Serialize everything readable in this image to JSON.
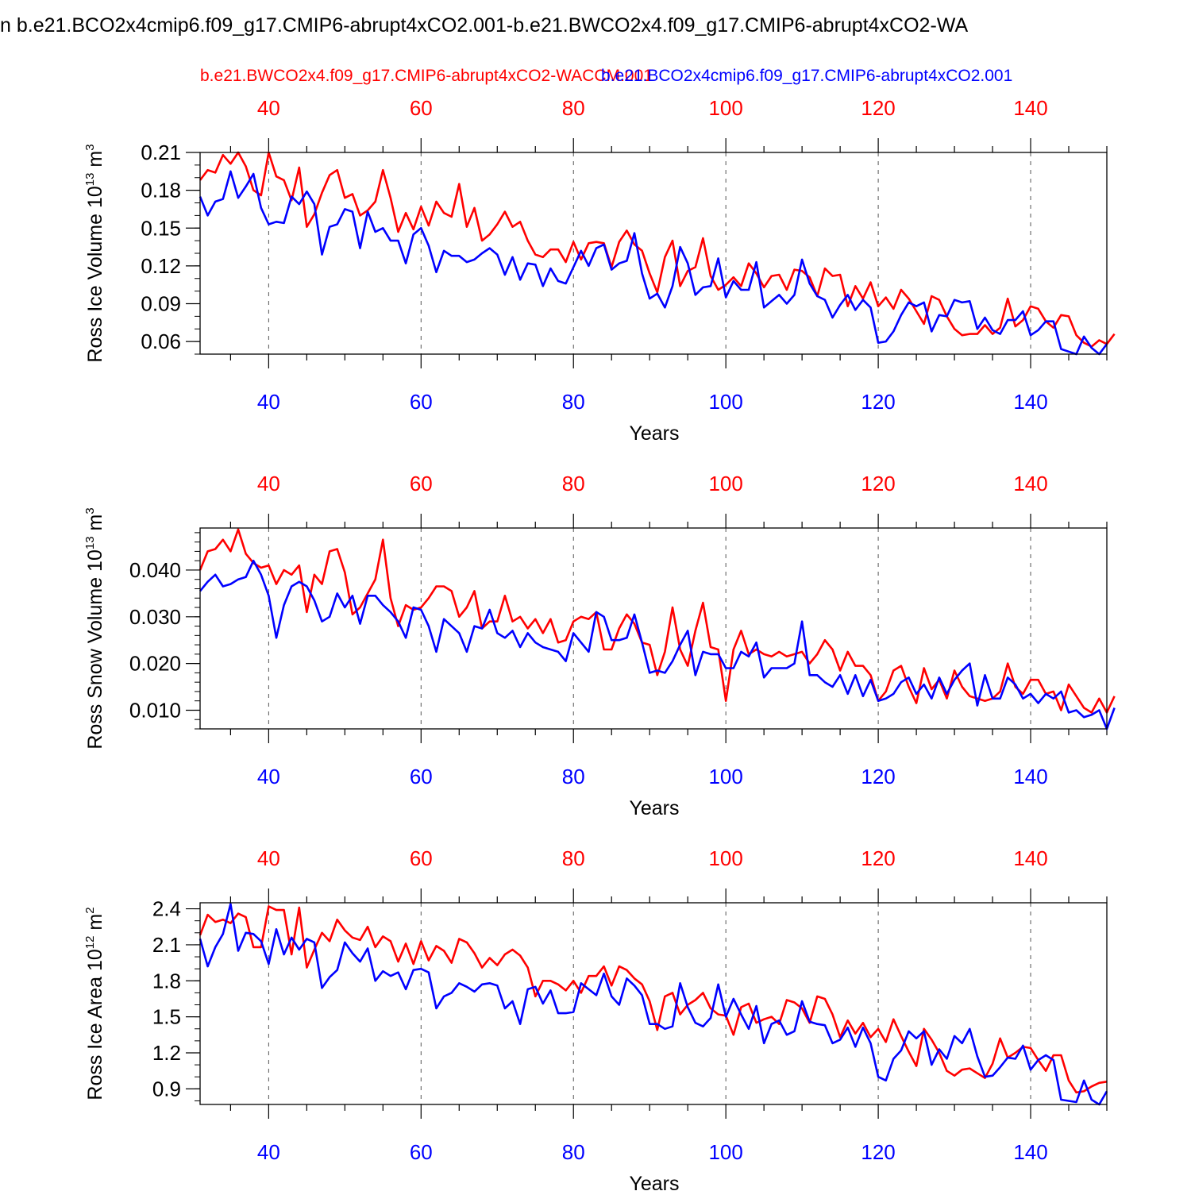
{
  "page": {
    "title": "n b.e21.BCO2x4cmip6.f09_g17.CMIP6-abrupt4xCO2.001-b.e21.BWCO2x4.f09_g17.CMIP6-abrupt4xCO2-WA"
  },
  "legend": {
    "red_label": "b.e21.BWCO2x4.f09_g17.CMIP6-abrupt4xCO2-WACCM.001",
    "blue_label": "b.e21.BCO2x4cmip6.f09_g17.CMIP6-abrupt4xCO2.001",
    "red_color": "#ff0000",
    "blue_color": "#0000ff"
  },
  "chart_data": [
    {
      "type": "line",
      "xlabel": "Years",
      "ylabel": "Ross Ice Volume 10",
      "ylabel_exp": "13",
      "ylabel_unit": " m",
      "ylabel_unit_exp": "3",
      "xlim": [
        31,
        150
      ],
      "ylim": [
        0.05,
        0.21
      ],
      "x_ticks": [
        40,
        60,
        80,
        100,
        120,
        140
      ],
      "y_ticks": [
        0.06,
        0.09,
        0.12,
        0.15,
        0.18,
        0.21
      ],
      "y_tick_labels": [
        "0.06",
        "0.09",
        "0.12",
        "0.15",
        "0.18",
        "0.21"
      ],
      "y_minor_step": 0.01,
      "x_start": 31,
      "series": [
        {
          "name": "b.e21.BWCO2x4.f09_g17.CMIP6-abrupt4xCO2-WACCM.001",
          "color": "#ff0000",
          "values": [
            0.188,
            0.196,
            0.194,
            0.208,
            0.201,
            0.21,
            0.199,
            0.18,
            0.176,
            0.21,
            0.191,
            0.188,
            0.172,
            0.198,
            0.151,
            0.161,
            0.178,
            0.192,
            0.196,
            0.174,
            0.177,
            0.16,
            0.164,
            0.171,
            0.196,
            0.174,
            0.147,
            0.162,
            0.149,
            0.167,
            0.152,
            0.171,
            0.162,
            0.159,
            0.185,
            0.151,
            0.166,
            0.14,
            0.145,
            0.153,
            0.163,
            0.151,
            0.155,
            0.14,
            0.129,
            0.127,
            0.133,
            0.133,
            0.123,
            0.139,
            0.125,
            0.138,
            0.139,
            0.138,
            0.119,
            0.139,
            0.148,
            0.137,
            0.132,
            0.114,
            0.099,
            0.127,
            0.14,
            0.104,
            0.116,
            0.119,
            0.142,
            0.112,
            0.101,
            0.105,
            0.111,
            0.104,
            0.122,
            0.114,
            0.103,
            0.112,
            0.113,
            0.101,
            0.117,
            0.116,
            0.111,
            0.096,
            0.118,
            0.112,
            0.113,
            0.088,
            0.104,
            0.094,
            0.107,
            0.088,
            0.095,
            0.086,
            0.101,
            0.094,
            0.084,
            0.074,
            0.096,
            0.093,
            0.08,
            0.07,
            0.065,
            0.066,
            0.066,
            0.073,
            0.066,
            0.071,
            0.094,
            0.072,
            0.077,
            0.088,
            0.086,
            0.076,
            0.071,
            0.081,
            0.08,
            0.065,
            0.059,
            0.056,
            0.061,
            0.058,
            0.066
          ]
        },
        {
          "name": "b.e21.BCO2x4cmip6.f09_g17.CMIP6-abrupt4xCO2.001",
          "color": "#0000ff",
          "values": [
            0.175,
            0.16,
            0.171,
            0.173,
            0.195,
            0.174,
            0.183,
            0.193,
            0.166,
            0.153,
            0.155,
            0.154,
            0.175,
            0.169,
            0.179,
            0.169,
            0.129,
            0.151,
            0.153,
            0.165,
            0.163,
            0.134,
            0.163,
            0.147,
            0.15,
            0.14,
            0.14,
            0.122,
            0.145,
            0.15,
            0.136,
            0.115,
            0.132,
            0.128,
            0.128,
            0.123,
            0.125,
            0.13,
            0.134,
            0.129,
            0.113,
            0.127,
            0.109,
            0.122,
            0.121,
            0.104,
            0.118,
            0.108,
            0.106,
            0.119,
            0.132,
            0.12,
            0.134,
            0.137,
            0.117,
            0.122,
            0.124,
            0.146,
            0.114,
            0.094,
            0.098,
            0.087,
            0.104,
            0.135,
            0.122,
            0.097,
            0.103,
            0.104,
            0.126,
            0.095,
            0.108,
            0.101,
            0.101,
            0.123,
            0.087,
            0.092,
            0.097,
            0.09,
            0.097,
            0.125,
            0.106,
            0.096,
            0.093,
            0.079,
            0.089,
            0.097,
            0.085,
            0.093,
            0.087,
            0.059,
            0.06,
            0.068,
            0.081,
            0.091,
            0.088,
            0.091,
            0.068,
            0.081,
            0.08,
            0.093,
            0.091,
            0.092,
            0.07,
            0.079,
            0.069,
            0.066,
            0.077,
            0.077,
            0.084,
            0.065,
            0.069,
            0.076,
            0.076,
            0.054,
            0.052,
            0.05,
            0.064,
            0.055,
            0.05,
            0.058
          ]
        }
      ]
    },
    {
      "type": "line",
      "xlabel": "Years",
      "ylabel": "Ross Snow Volume 10",
      "ylabel_exp": "13",
      "ylabel_unit": " m",
      "ylabel_unit_exp": "3",
      "xlim": [
        31,
        150
      ],
      "ylim": [
        0.006,
        0.049
      ],
      "x_ticks": [
        40,
        60,
        80,
        100,
        120,
        140
      ],
      "y_ticks": [
        0.01,
        0.02,
        0.03,
        0.04
      ],
      "y_tick_labels": [
        "0.010",
        "0.020",
        "0.030",
        "0.040"
      ],
      "y_minor_step": 0.002,
      "x_start": 31,
      "series": [
        {
          "name": "b.e21.BWCO2x4.f09_g17.CMIP6-abrupt4xCO2-WACCM.001",
          "color": "#ff0000",
          "values": [
            0.04,
            0.044,
            0.0445,
            0.0465,
            0.044,
            0.0487,
            0.0435,
            0.0415,
            0.0405,
            0.041,
            0.037,
            0.04,
            0.039,
            0.041,
            0.031,
            0.039,
            0.037,
            0.044,
            0.0445,
            0.0395,
            0.0305,
            0.032,
            0.035,
            0.038,
            0.0465,
            0.034,
            0.028,
            0.0325,
            0.0315,
            0.032,
            0.034,
            0.0365,
            0.0365,
            0.0355,
            0.03,
            0.032,
            0.0355,
            0.0275,
            0.029,
            0.029,
            0.0345,
            0.029,
            0.03,
            0.0275,
            0.0295,
            0.0265,
            0.0295,
            0.0245,
            0.025,
            0.029,
            0.03,
            0.0295,
            0.031,
            0.023,
            0.023,
            0.0275,
            0.0305,
            0.0285,
            0.0245,
            0.024,
            0.0175,
            0.0225,
            0.032,
            0.023,
            0.0195,
            0.027,
            0.033,
            0.0235,
            0.023,
            0.012,
            0.023,
            0.027,
            0.022,
            0.023,
            0.022,
            0.0215,
            0.0225,
            0.0215,
            0.022,
            0.0225,
            0.02,
            0.022,
            0.025,
            0.023,
            0.0185,
            0.0225,
            0.0195,
            0.0195,
            0.0175,
            0.012,
            0.014,
            0.0185,
            0.0195,
            0.015,
            0.0115,
            0.019,
            0.0145,
            0.0165,
            0.0125,
            0.0185,
            0.015,
            0.013,
            0.0125,
            0.012,
            0.0125,
            0.014,
            0.02,
            0.015,
            0.0135,
            0.0165,
            0.0165,
            0.0135,
            0.014,
            0.01,
            0.0155,
            0.013,
            0.0105,
            0.0095,
            0.0125,
            0.0095,
            0.013
          ]
        },
        {
          "name": "b.e21.BCO2x4cmip6.f09_g17.CMIP6-abrupt4xCO2.001",
          "color": "#0000ff",
          "values": [
            0.0355,
            0.0375,
            0.039,
            0.0365,
            0.037,
            0.038,
            0.0385,
            0.042,
            0.039,
            0.0345,
            0.0255,
            0.0325,
            0.0365,
            0.0375,
            0.0365,
            0.0335,
            0.029,
            0.03,
            0.035,
            0.032,
            0.0345,
            0.0285,
            0.0345,
            0.0345,
            0.0325,
            0.031,
            0.029,
            0.0255,
            0.032,
            0.0315,
            0.028,
            0.0225,
            0.0295,
            0.028,
            0.0265,
            0.0225,
            0.028,
            0.0275,
            0.0315,
            0.0265,
            0.0255,
            0.027,
            0.0235,
            0.0265,
            0.0245,
            0.0235,
            0.023,
            0.0225,
            0.0205,
            0.0265,
            0.0245,
            0.0225,
            0.031,
            0.03,
            0.025,
            0.025,
            0.0255,
            0.0305,
            0.0245,
            0.018,
            0.0185,
            0.018,
            0.0205,
            0.024,
            0.027,
            0.0175,
            0.0225,
            0.022,
            0.022,
            0.019,
            0.019,
            0.0225,
            0.0215,
            0.0245,
            0.017,
            0.019,
            0.019,
            0.019,
            0.02,
            0.029,
            0.0175,
            0.0175,
            0.016,
            0.015,
            0.0175,
            0.0135,
            0.0175,
            0.013,
            0.0165,
            0.012,
            0.0125,
            0.0135,
            0.016,
            0.017,
            0.0135,
            0.0155,
            0.0125,
            0.017,
            0.0135,
            0.0165,
            0.0185,
            0.02,
            0.011,
            0.0175,
            0.0125,
            0.0125,
            0.017,
            0.0155,
            0.0125,
            0.0135,
            0.0115,
            0.0135,
            0.0125,
            0.014,
            0.0095,
            0.01,
            0.0085,
            0.009,
            0.01,
            0.006,
            0.0105
          ]
        }
      ]
    },
    {
      "type": "line",
      "xlabel": "Years",
      "ylabel": "Ross Ice Area 10",
      "ylabel_exp": "12",
      "ylabel_unit": " m",
      "ylabel_unit_exp": "2",
      "xlim": [
        31,
        150
      ],
      "ylim": [
        0.77,
        2.45
      ],
      "x_ticks": [
        40,
        60,
        80,
        100,
        120,
        140
      ],
      "y_ticks": [
        0.9,
        1.2,
        1.5,
        1.8,
        2.1,
        2.4
      ],
      "y_tick_labels": [
        "0.9",
        "1.2",
        "1.5",
        "1.8",
        "2.1",
        "2.4"
      ],
      "y_minor_step": 0.1,
      "x_start": 31,
      "series": [
        {
          "name": "b.e21.BWCO2x4.f09_g17.CMIP6-abrupt4xCO2-WACCM.001",
          "color": "#ff0000",
          "values": [
            2.18,
            2.35,
            2.29,
            2.31,
            2.28,
            2.36,
            2.33,
            2.08,
            2.08,
            2.42,
            2.39,
            2.39,
            2.02,
            2.41,
            1.91,
            2.06,
            2.2,
            2.13,
            2.31,
            2.22,
            2.16,
            2.14,
            2.25,
            2.08,
            2.17,
            2.13,
            1.96,
            2.11,
            1.94,
            2.13,
            1.97,
            2.09,
            2.05,
            1.95,
            2.15,
            2.12,
            2.03,
            1.91,
            1.99,
            1.93,
            2.02,
            2.06,
            2.01,
            1.91,
            1.67,
            1.8,
            1.8,
            1.77,
            1.72,
            1.8,
            1.7,
            1.84,
            1.84,
            1.92,
            1.76,
            1.92,
            1.89,
            1.82,
            1.77,
            1.63,
            1.39,
            1.67,
            1.7,
            1.52,
            1.6,
            1.64,
            1.7,
            1.57,
            1.52,
            1.51,
            1.35,
            1.58,
            1.61,
            1.45,
            1.48,
            1.5,
            1.44,
            1.64,
            1.62,
            1.57,
            1.45,
            1.67,
            1.65,
            1.52,
            1.33,
            1.47,
            1.36,
            1.45,
            1.33,
            1.4,
            1.29,
            1.48,
            1.34,
            1.21,
            1.09,
            1.4,
            1.31,
            1.2,
            1.05,
            1.01,
            1.06,
            1.07,
            1.03,
            0.99,
            1.11,
            1.32,
            1.16,
            1.2,
            1.25,
            1.24,
            1.14,
            1.05,
            1.18,
            1.18,
            0.97,
            0.87,
            0.88,
            0.92,
            0.95,
            0.96
          ]
        },
        {
          "name": "b.e21.BCO2x4cmip6.f09_g17.CMIP6-abrupt4xCO2.001",
          "color": "#0000ff",
          "values": [
            2.15,
            1.92,
            2.08,
            2.19,
            2.44,
            2.05,
            2.2,
            2.19,
            2.13,
            1.94,
            2.23,
            2.02,
            2.16,
            2.06,
            2.15,
            2.12,
            1.74,
            1.83,
            1.89,
            2.12,
            2.03,
            1.96,
            2.07,
            1.8,
            1.88,
            1.84,
            1.87,
            1.73,
            1.89,
            1.9,
            1.87,
            1.57,
            1.67,
            1.7,
            1.78,
            1.75,
            1.71,
            1.77,
            1.78,
            1.76,
            1.57,
            1.63,
            1.44,
            1.73,
            1.75,
            1.61,
            1.72,
            1.53,
            1.53,
            1.54,
            1.78,
            1.73,
            1.68,
            1.86,
            1.67,
            1.6,
            1.82,
            1.76,
            1.68,
            1.44,
            1.44,
            1.4,
            1.42,
            1.78,
            1.58,
            1.45,
            1.42,
            1.49,
            1.77,
            1.5,
            1.65,
            1.52,
            1.4,
            1.59,
            1.28,
            1.44,
            1.47,
            1.35,
            1.38,
            1.63,
            1.46,
            1.44,
            1.43,
            1.28,
            1.31,
            1.41,
            1.25,
            1.41,
            1.28,
            1.0,
            0.97,
            1.15,
            1.22,
            1.38,
            1.32,
            1.38,
            1.1,
            1.23,
            1.15,
            1.34,
            1.28,
            1.4,
            1.17,
            1.0,
            1.01,
            1.08,
            1.16,
            1.15,
            1.26,
            1.06,
            1.14,
            1.18,
            1.14,
            0.81,
            0.8,
            0.79,
            0.97,
            0.81,
            0.77,
            0.88
          ]
        }
      ]
    }
  ]
}
